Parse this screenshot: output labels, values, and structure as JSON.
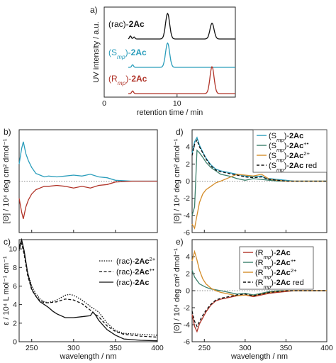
{
  "figure": {
    "panels": [
      "a)",
      "b)",
      "c)",
      "d)",
      "e)"
    ],
    "colors": {
      "black": "#111111",
      "teal": "#2a9dbb",
      "red": "#b03328",
      "green": "#3c7f6b",
      "orange": "#d48d2a"
    }
  },
  "chart_data": [
    {
      "panel": "a)",
      "type": "line",
      "xlabel": "retention time / min",
      "ylabel": "UV intensity / a.u.",
      "xlim": [
        0,
        18
      ],
      "xticks": [
        "0",
        "10"
      ],
      "grid": false,
      "series": [
        {
          "name_prefix": "(rac)-",
          "name_bold": "2Ac",
          "name": "(rac)-2Ac",
          "color": "#111111",
          "peaks": [
            {
              "t": 3.6,
              "h": 0.12
            },
            {
              "t": 4.1,
              "h": 0.08
            },
            {
              "t": 8.7,
              "h": 1.0
            },
            {
              "t": 14.8,
              "h": 0.62
            }
          ]
        },
        {
          "name_prefix": "(S",
          "name_sub": "mp",
          "name_suffix": ")-",
          "name_bold": "2Ac",
          "name": "(Smp)-2Ac",
          "color": "#2a9dbb",
          "peaks": [
            {
              "t": 3.9,
              "h": 0.1
            },
            {
              "t": 8.7,
              "h": 0.95
            }
          ]
        },
        {
          "name_prefix": "(R",
          "name_sub": "mp",
          "name_suffix": ")-",
          "name_bold": "2Ac",
          "name": "(Rmp)-2Ac",
          "color": "#b03328",
          "peaks": [
            {
              "t": 3.9,
              "h": 0.1
            },
            {
              "t": 14.8,
              "h": 1.0
            }
          ]
        }
      ]
    },
    {
      "panel": "b)",
      "type": "line",
      "xlabel": "",
      "ylabel": "[Θ] / 10⁴ deg cm² dmol⁻¹",
      "xlim": [
        235,
        400
      ],
      "series": [
        {
          "name": "(Smp)-2Ac",
          "color": "#2a9dbb",
          "x": [
            235,
            238,
            240,
            243,
            246,
            250,
            255,
            260,
            265,
            270,
            280,
            290,
            300,
            310,
            320,
            330,
            340,
            350,
            370,
            400
          ],
          "y": [
            2.0,
            3.8,
            4.6,
            3.2,
            2.4,
            1.6,
            0.9,
            0.7,
            0.5,
            0.6,
            0.5,
            0.6,
            0.7,
            0.6,
            0.8,
            0.5,
            0.4,
            0.1,
            0.0,
            0.0
          ]
        },
        {
          "name": "(Rmp)-2Ac",
          "color": "#b03328",
          "x": [
            235,
            238,
            240,
            243,
            246,
            250,
            255,
            260,
            265,
            270,
            280,
            290,
            300,
            310,
            320,
            330,
            340,
            350,
            370,
            400
          ],
          "y": [
            -2.0,
            -3.6,
            -4.4,
            -3.0,
            -2.2,
            -1.5,
            -1.0,
            -0.8,
            -0.6,
            -0.6,
            -0.5,
            -0.6,
            -0.8,
            -0.6,
            -0.8,
            -0.5,
            -0.4,
            -0.1,
            0.0,
            0.0
          ]
        }
      ]
    },
    {
      "panel": "c)",
      "type": "line",
      "xlabel": "wavelength / nm",
      "ylabel": "ε / 10⁴ L mol⁻¹ cm⁻¹",
      "xlim": [
        235,
        400
      ],
      "xticks": [
        "250",
        "300",
        "350",
        "400"
      ],
      "ylim": [
        0,
        11
      ],
      "yticks": [
        "0",
        "2",
        "4",
        "6",
        "8",
        "10"
      ],
      "series": [
        {
          "name_prefix": "(rac)-",
          "name_bold": "2Ac",
          "name_sup": "2+",
          "name": "(rac)-2Ac2+",
          "dash": "dotted",
          "x": [
            235,
            238,
            241,
            245,
            250,
            255,
            260,
            265,
            270,
            280,
            290,
            295,
            300,
            310,
            320,
            325,
            330,
            340,
            350,
            360,
            380,
            400
          ],
          "y": [
            9.8,
            10.8,
            9.6,
            7.5,
            6.0,
            5.2,
            4.6,
            4.3,
            4.2,
            4.5,
            5.0,
            5.1,
            5.0,
            4.5,
            3.8,
            3.5,
            3.2,
            2.0,
            1.2,
            0.9,
            0.8,
            0.7
          ]
        },
        {
          "name_prefix": "(rac)-",
          "name_bold": "2Ac",
          "name_sup": "+•",
          "name": "(rac)-2Ac+•",
          "dash": "dashed",
          "x": [
            235,
            238,
            241,
            245,
            250,
            255,
            260,
            265,
            270,
            280,
            290,
            300,
            310,
            320,
            325,
            330,
            340,
            350,
            360,
            380,
            400
          ],
          "y": [
            10.0,
            10.6,
            9.4,
            7.2,
            5.6,
            4.9,
            4.4,
            4.2,
            4.2,
            4.3,
            4.6,
            4.5,
            4.1,
            3.4,
            3.0,
            2.7,
            1.7,
            1.1,
            0.8,
            0.6,
            0.5
          ]
        },
        {
          "name_prefix": "(rac)-",
          "name_bold": "2Ac",
          "name": "(rac)-2Ac",
          "dash": "solid",
          "x": [
            235,
            238,
            241,
            245,
            250,
            255,
            260,
            265,
            270,
            275,
            280,
            290,
            300,
            310,
            320,
            323,
            326,
            330,
            340,
            350,
            360,
            380,
            400
          ],
          "y": [
            10.2,
            11.0,
            9.8,
            7.5,
            5.7,
            4.9,
            4.3,
            4.0,
            3.7,
            3.3,
            3.0,
            2.6,
            2.6,
            2.7,
            2.8,
            3.2,
            2.9,
            2.3,
            1.3,
            0.7,
            0.3,
            0.15,
            0.1
          ]
        }
      ]
    },
    {
      "panel": "d)",
      "type": "line",
      "xlabel": "",
      "ylabel": "[Θ] / 10⁴ deg cm² dmol⁻¹",
      "xlim": [
        235,
        400
      ],
      "ylim": [
        -6,
        6
      ],
      "yticks": [
        "-6",
        "-4",
        "-2",
        "0",
        "2",
        "4"
      ],
      "series": [
        {
          "name_prefix": "(S",
          "name_sub": "mp",
          "name_suffix": ")-",
          "name_bold": "2Ac",
          "name": "(Smp)-2Ac",
          "color": "#2a9dbb",
          "x": [
            235,
            238,
            241,
            244,
            248,
            252,
            258,
            264,
            270,
            280,
            290,
            300,
            310,
            320,
            325,
            330,
            340,
            350,
            360,
            380,
            400
          ],
          "y": [
            3.2,
            4.6,
            5.1,
            4.2,
            3.4,
            2.7,
            1.9,
            1.4,
            1.2,
            1.0,
            0.8,
            0.6,
            0.5,
            0.6,
            0.3,
            0.3,
            0.2,
            0.1,
            0.0,
            0.0,
            0.0
          ]
        },
        {
          "name_prefix": "(S",
          "name_sub": "mp",
          "name_suffix": ")-",
          "name_bold": "2Ac",
          "name_sup": "+•",
          "name": "(Smp)-2Ac+•",
          "color": "#3c7f6b",
          "x": [
            235,
            238,
            241,
            244,
            248,
            252,
            258,
            264,
            270,
            280,
            290,
            300,
            310,
            320,
            330,
            340,
            350,
            360,
            380,
            400
          ],
          "y": [
            -4.0,
            -3.0,
            3.6,
            3.3,
            2.8,
            2.2,
            1.6,
            1.2,
            0.8,
            0.6,
            0.3,
            0.1,
            0.3,
            0.2,
            0.1,
            0.0,
            0.0,
            0.0,
            0.0,
            0.0
          ]
        },
        {
          "name_prefix": "(S",
          "name_sub": "mp",
          "name_suffix": ")-",
          "name_bold": "2Ac",
          "name_sup": "2+",
          "name": "(Smp)-2Ac2+",
          "color": "#d48d2a",
          "x": [
            235,
            238,
            241,
            244,
            248,
            252,
            258,
            264,
            270,
            280,
            290,
            300,
            310,
            320,
            330,
            340,
            350,
            360,
            380,
            400
          ],
          "y": [
            -5.0,
            -5.5,
            -4.0,
            -2.5,
            -1.5,
            -1.0,
            -0.6,
            -0.2,
            0.0,
            0.4,
            0.8,
            0.7,
            0.6,
            0.8,
            0.2,
            0.1,
            0.0,
            0.0,
            0.0,
            0.0
          ]
        },
        {
          "name_prefix": "(S",
          "name_sub": "mp",
          "name_suffix": ")-",
          "name_bold": "2Ac",
          "name_extra": " red",
          "name": "(Smp)-2Ac red",
          "color": "#111111",
          "dash": "dashed",
          "x": [
            235,
            238,
            241,
            244,
            248,
            252,
            258,
            264,
            270,
            280,
            290,
            300,
            310,
            320,
            330,
            340,
            350,
            360,
            380,
            400
          ],
          "y": [
            3.0,
            4.3,
            4.8,
            4.0,
            3.3,
            2.6,
            1.8,
            1.3,
            1.1,
            0.9,
            0.7,
            0.5,
            0.4,
            0.5,
            0.2,
            0.1,
            0.0,
            0.0,
            0.0,
            0.0
          ]
        }
      ]
    },
    {
      "panel": "e)",
      "type": "line",
      "xlabel": "wavelength / nm",
      "ylabel": "[Θ] / 10⁴ deg cm² dmol⁻¹",
      "xlim": [
        235,
        400
      ],
      "xticks": [
        "250",
        "300",
        "350",
        "400"
      ],
      "ylim": [
        -6,
        6
      ],
      "yticks": [
        "-6",
        "-4",
        "-2",
        "0",
        "2",
        "4"
      ],
      "series": [
        {
          "name_prefix": "(R",
          "name_sub": "mp",
          "name_suffix": ")-",
          "name_bold": "2Ac",
          "name": "(Rmp)-2Ac",
          "color": "#b03328",
          "x": [
            235,
            238,
            241,
            244,
            248,
            252,
            258,
            264,
            270,
            280,
            290,
            300,
            310,
            320,
            330,
            340,
            350,
            360,
            380,
            400
          ],
          "y": [
            -2.8,
            -4.2,
            -4.8,
            -3.9,
            -3.2,
            -2.5,
            -1.7,
            -1.2,
            -1.0,
            -0.8,
            -0.6,
            -0.5,
            -0.7,
            -0.5,
            -0.3,
            -0.2,
            -0.1,
            0.0,
            0.0,
            0.0
          ]
        },
        {
          "name_prefix": "(R",
          "name_sub": "mp",
          "name_suffix": ")-",
          "name_bold": "2Ac",
          "name_sup": "+•",
          "name": "(Rmp)-2Ac+•",
          "color": "#3c7f6b",
          "x": [
            235,
            238,
            241,
            244,
            248,
            252,
            258,
            264,
            270,
            280,
            290,
            300,
            310,
            320,
            330,
            340,
            350,
            360,
            380,
            400
          ],
          "y": [
            2.4,
            1.6,
            1.2,
            0.8,
            0.6,
            0.4,
            0.2,
            0.1,
            0.0,
            -0.2,
            -0.4,
            -0.3,
            -0.5,
            -0.3,
            -0.1,
            0.0,
            0.0,
            0.0,
            0.0,
            0.0
          ]
        },
        {
          "name_prefix": "(R",
          "name_sub": "mp",
          "name_suffix": ")-",
          "name_bold": "2Ac",
          "name_sup": "2+",
          "name": "(Rmp)-2Ac2+",
          "color": "#d48d2a",
          "x": [
            235,
            238,
            241,
            244,
            248,
            252,
            258,
            264,
            270,
            280,
            290,
            300,
            310,
            320,
            330,
            340,
            350,
            360,
            380,
            400
          ],
          "y": [
            3.5,
            4.6,
            3.6,
            2.4,
            1.4,
            0.8,
            0.3,
            0.0,
            -0.2,
            -0.4,
            -0.6,
            -0.5,
            -0.6,
            -0.4,
            -0.2,
            -0.1,
            0.0,
            0.0,
            0.0,
            0.0
          ]
        },
        {
          "name_prefix": "(R",
          "name_sub": "mp",
          "name_suffix": ")-",
          "name_bold": "2Ac",
          "name_extra": " red",
          "name": "(Rmp)-2Ac red",
          "color": "#111111",
          "dash": "dashed",
          "x": [
            235,
            238,
            241,
            244,
            248,
            252,
            258,
            264,
            270,
            280,
            290,
            300,
            310,
            320,
            330,
            340,
            350,
            360,
            380,
            400
          ],
          "y": [
            -2.4,
            -3.6,
            -4.2,
            -3.6,
            -2.9,
            -2.3,
            -1.6,
            -1.1,
            -0.9,
            -0.7,
            -0.5,
            -0.4,
            -0.6,
            -0.4,
            -0.2,
            -0.1,
            0.0,
            0.0,
            0.0,
            0.0
          ]
        }
      ]
    }
  ]
}
